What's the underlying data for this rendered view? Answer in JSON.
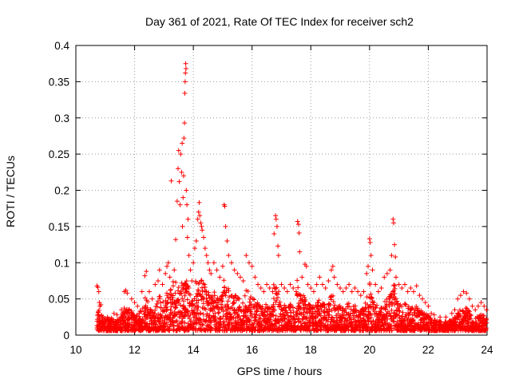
{
  "chart_data": {
    "type": "scatter",
    "title": "Day 361 of 2021, Rate Of TEC Index for receiver sch2",
    "xlabel": "GPS time / hours",
    "ylabel": "ROTI / TECUs",
    "xlim": [
      10,
      24
    ],
    "ylim": [
      0,
      0.4
    ],
    "xticks": [
      10,
      12,
      14,
      16,
      18,
      20,
      22,
      24
    ],
    "yticks": [
      0,
      0.05,
      0.1,
      0.15,
      0.2,
      0.25,
      0.3,
      0.35,
      0.4
    ],
    "xtick_labels": [
      "10",
      "12",
      "14",
      "16",
      "18",
      "20",
      "22",
      "24"
    ],
    "ytick_labels": [
      "0",
      "0.05",
      "0.1",
      "0.15",
      "0.2",
      "0.25",
      "0.3",
      "0.35",
      "0.4"
    ],
    "grid": true,
    "marker": "+",
    "color": "#ff0000",
    "series": [
      {
        "name": "ROTI",
        "points": [
          [
            10.72,
            0.068
          ],
          [
            10.75,
            0.066
          ],
          [
            10.78,
            0.06
          ],
          [
            10.8,
            0.045
          ],
          [
            10.82,
            0.04
          ],
          [
            10.85,
            0.042
          ],
          [
            11.3,
            0.03
          ],
          [
            11.4,
            0.028
          ],
          [
            11.55,
            0.035
          ],
          [
            11.65,
            0.06
          ],
          [
            11.7,
            0.062
          ],
          [
            11.75,
            0.058
          ],
          [
            11.9,
            0.05
          ],
          [
            12.0,
            0.045
          ],
          [
            12.1,
            0.04
          ],
          [
            12.25,
            0.06
          ],
          [
            12.35,
            0.082
          ],
          [
            12.4,
            0.088
          ],
          [
            12.5,
            0.06
          ],
          [
            12.6,
            0.05
          ],
          [
            12.7,
            0.07
          ],
          [
            12.8,
            0.075
          ],
          [
            12.85,
            0.09
          ],
          [
            12.95,
            0.07
          ],
          [
            13.05,
            0.085
          ],
          [
            13.1,
            0.095
          ],
          [
            13.15,
            0.1
          ],
          [
            13.2,
            0.08
          ],
          [
            13.25,
            0.213
          ],
          [
            13.35,
            0.09
          ],
          [
            13.4,
            0.132
          ],
          [
            13.45,
            0.185
          ],
          [
            13.48,
            0.23
          ],
          [
            13.5,
            0.255
          ],
          [
            13.52,
            0.212
          ],
          [
            13.55,
            0.18
          ],
          [
            13.57,
            0.25
          ],
          [
            13.6,
            0.225
          ],
          [
            13.62,
            0.265
          ],
          [
            13.63,
            0.15
          ],
          [
            13.65,
            0.19
          ],
          [
            13.67,
            0.22
          ],
          [
            13.68,
            0.272
          ],
          [
            13.7,
            0.293
          ],
          [
            13.71,
            0.334
          ],
          [
            13.72,
            0.35
          ],
          [
            13.73,
            0.362
          ],
          [
            13.74,
            0.375
          ],
          [
            13.75,
            0.368
          ],
          [
            13.76,
            0.2
          ],
          [
            13.78,
            0.18
          ],
          [
            13.8,
            0.135
          ],
          [
            13.82,
            0.16
          ],
          [
            13.85,
            0.11
          ],
          [
            13.9,
            0.09
          ],
          [
            13.95,
            0.075
          ],
          [
            14.0,
            0.1
          ],
          [
            14.05,
            0.12
          ],
          [
            14.1,
            0.13
          ],
          [
            14.15,
            0.16
          ],
          [
            14.18,
            0.17
          ],
          [
            14.2,
            0.183
          ],
          [
            14.22,
            0.165
          ],
          [
            14.25,
            0.155
          ],
          [
            14.28,
            0.15
          ],
          [
            14.3,
            0.145
          ],
          [
            14.35,
            0.135
          ],
          [
            14.4,
            0.12
          ],
          [
            14.45,
            0.11
          ],
          [
            14.5,
            0.1
          ],
          [
            14.55,
            0.09
          ],
          [
            14.6,
            0.085
          ],
          [
            14.7,
            0.1
          ],
          [
            14.8,
            0.09
          ],
          [
            14.9,
            0.08
          ],
          [
            15.0,
            0.095
          ],
          [
            15.05,
            0.18
          ],
          [
            15.07,
            0.178
          ],
          [
            15.1,
            0.15
          ],
          [
            15.15,
            0.13
          ],
          [
            15.2,
            0.11
          ],
          [
            15.3,
            0.1
          ],
          [
            15.4,
            0.09
          ],
          [
            15.5,
            0.085
          ],
          [
            15.6,
            0.08
          ],
          [
            15.7,
            0.075
          ],
          [
            15.8,
            0.11
          ],
          [
            15.9,
            0.1
          ],
          [
            16.0,
            0.095
          ],
          [
            16.1,
            0.08
          ],
          [
            16.2,
            0.07
          ],
          [
            16.3,
            0.065
          ],
          [
            16.4,
            0.06
          ],
          [
            16.5,
            0.07
          ],
          [
            16.6,
            0.065
          ],
          [
            16.7,
            0.06
          ],
          [
            16.75,
            0.14
          ],
          [
            16.8,
            0.165
          ],
          [
            16.82,
            0.16
          ],
          [
            16.85,
            0.15
          ],
          [
            16.88,
            0.123
          ],
          [
            16.9,
            0.11
          ],
          [
            17.0,
            0.07
          ],
          [
            17.1,
            0.065
          ],
          [
            17.2,
            0.06
          ],
          [
            17.3,
            0.07
          ],
          [
            17.4,
            0.065
          ],
          [
            17.5,
            0.06
          ],
          [
            17.55,
            0.157
          ],
          [
            17.58,
            0.153
          ],
          [
            17.6,
            0.141
          ],
          [
            17.62,
            0.115
          ],
          [
            17.7,
            0.08
          ],
          [
            17.8,
            0.098
          ],
          [
            17.85,
            0.095
          ],
          [
            17.9,
            0.07
          ],
          [
            18.0,
            0.065
          ],
          [
            18.1,
            0.06
          ],
          [
            18.2,
            0.07
          ],
          [
            18.3,
            0.08
          ],
          [
            18.4,
            0.07
          ],
          [
            18.5,
            0.065
          ],
          [
            18.6,
            0.075
          ],
          [
            18.7,
            0.09
          ],
          [
            18.75,
            0.095
          ],
          [
            18.8,
            0.08
          ],
          [
            18.9,
            0.07
          ],
          [
            19.0,
            0.065
          ],
          [
            19.1,
            0.06
          ],
          [
            19.2,
            0.065
          ],
          [
            19.3,
            0.07
          ],
          [
            19.4,
            0.06
          ],
          [
            19.5,
            0.065
          ],
          [
            19.6,
            0.06
          ],
          [
            19.7,
            0.055
          ],
          [
            19.8,
            0.06
          ],
          [
            19.9,
            0.085
          ],
          [
            19.95,
            0.095
          ],
          [
            20.0,
            0.133
          ],
          [
            20.02,
            0.128
          ],
          [
            20.05,
            0.11
          ],
          [
            20.1,
            0.09
          ],
          [
            20.2,
            0.07
          ],
          [
            20.3,
            0.06
          ],
          [
            20.4,
            0.065
          ],
          [
            20.5,
            0.08
          ],
          [
            20.6,
            0.085
          ],
          [
            20.7,
            0.09
          ],
          [
            20.75,
            0.11
          ],
          [
            20.8,
            0.16
          ],
          [
            20.82,
            0.155
          ],
          [
            20.85,
            0.125
          ],
          [
            20.88,
            0.108
          ],
          [
            20.9,
            0.08
          ],
          [
            21.0,
            0.07
          ],
          [
            21.1,
            0.065
          ],
          [
            21.2,
            0.07
          ],
          [
            21.3,
            0.06
          ],
          [
            21.4,
            0.065
          ],
          [
            21.5,
            0.06
          ],
          [
            21.6,
            0.068
          ],
          [
            21.7,
            0.055
          ],
          [
            21.8,
            0.05
          ],
          [
            21.9,
            0.045
          ],
          [
            22.0,
            0.04
          ],
          [
            22.1,
            0.03
          ],
          [
            22.2,
            0.028
          ],
          [
            22.4,
            0.025
          ],
          [
            22.6,
            0.025
          ],
          [
            22.8,
            0.03
          ],
          [
            22.9,
            0.035
          ],
          [
            23.0,
            0.05
          ],
          [
            23.1,
            0.055
          ],
          [
            23.2,
            0.06
          ],
          [
            23.3,
            0.058
          ],
          [
            23.4,
            0.05
          ],
          [
            23.5,
            0.04
          ],
          [
            23.6,
            0.035
          ],
          [
            23.7,
            0.04
          ],
          [
            23.8,
            0.045
          ],
          [
            23.9,
            0.04
          ],
          [
            23.98,
            0.035
          ]
        ]
      }
    ]
  }
}
